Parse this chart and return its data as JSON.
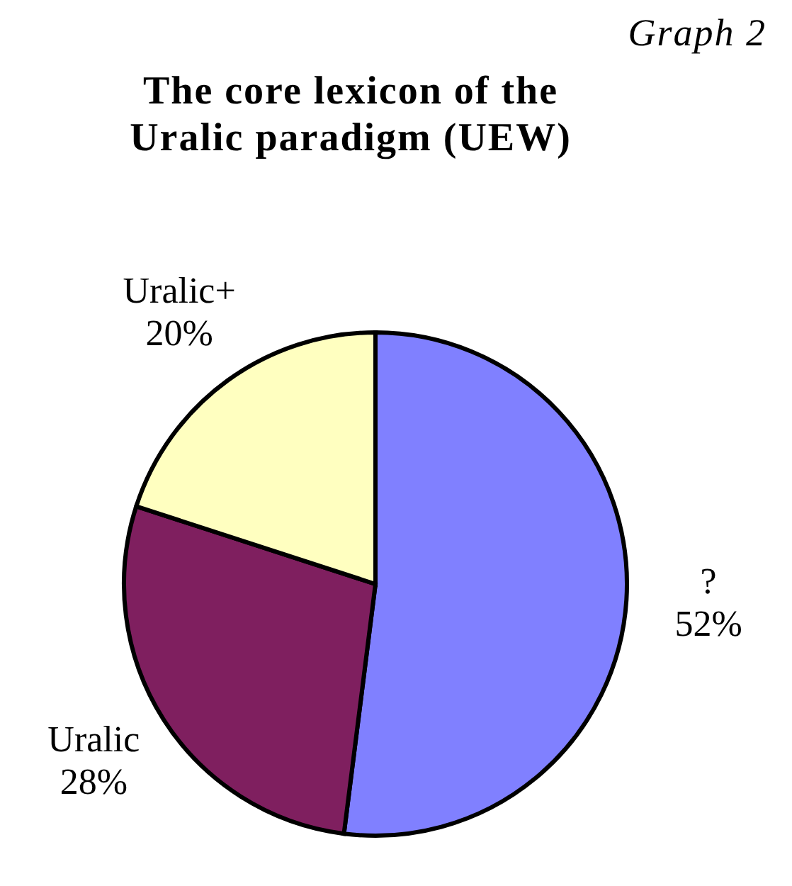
{
  "chart_data": {
    "type": "pie",
    "title": "The core lexicon of the Uralic paradigm (UEW)",
    "annotations": [
      "Graph 2"
    ],
    "categories": [
      "?",
      "Uralic",
      "Uralic+"
    ],
    "values": [
      52,
      28,
      20
    ],
    "colors": [
      "#8080ff",
      "#7f1f5f",
      "#ffffc0"
    ],
    "value_labels": [
      "52%",
      "28%",
      "20%"
    ]
  }
}
